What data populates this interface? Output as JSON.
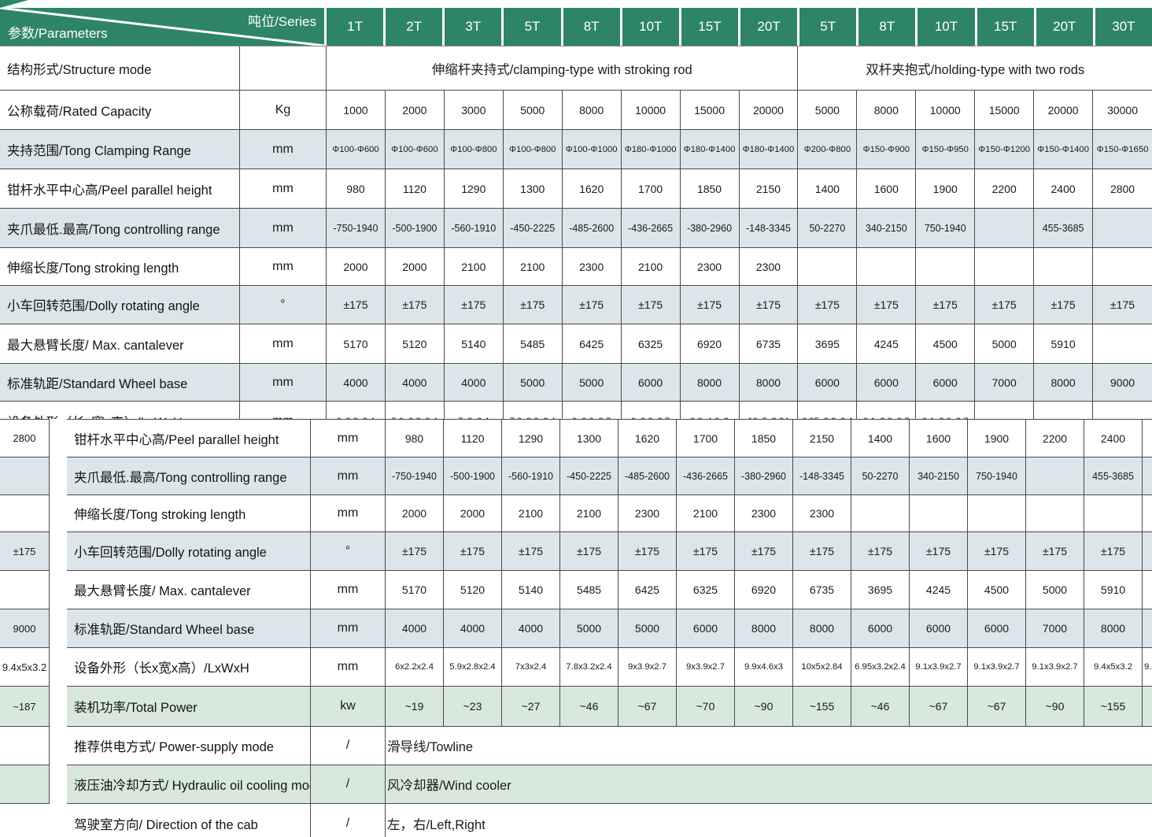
{
  "colors": {
    "header_green": "#2e8468",
    "shade_blue": "#dbe5ea",
    "shade_green": "#d9e8df",
    "border": "#4a4a4a"
  },
  "header": {
    "series_label": "吨位/Series",
    "params_label": "参数/Parameters",
    "columns": [
      "1T",
      "2T",
      "3T",
      "5T",
      "8T",
      "10T",
      "15T",
      "20T",
      "5T",
      "8T",
      "10T",
      "15T",
      "20T",
      "30T"
    ]
  },
  "top_table": {
    "structure": {
      "label": "结构形式/Structure mode",
      "unit": "",
      "groups": [
        {
          "text": "伸缩杆夹持式/clamping-type with stroking rod",
          "span": 8
        },
        {
          "text": "双杆夹抱式/holding-type with two rods",
          "span": 6
        }
      ]
    },
    "rows": [
      {
        "label": "公称载荷/Rated Capacity",
        "unit": "Kg",
        "shade": "none",
        "size": "md",
        "values": [
          "1000",
          "2000",
          "3000",
          "5000",
          "8000",
          "10000",
          "15000",
          "20000",
          "5000",
          "8000",
          "10000",
          "15000",
          "20000",
          "30000"
        ]
      },
      {
        "label": "夹持范围/Tong Clamping Range",
        "unit": "mm",
        "shade": "blue",
        "size": "xs",
        "values": [
          "Φ100-Φ600",
          "Φ100-Φ600",
          "Φ100-Φ800",
          "Φ100-Φ800",
          "Φ100-Φ1000",
          "Φ180-Φ1000",
          "Φ180-Φ1400",
          "Φ180-Φ1400",
          "Φ200-Φ800",
          "Φ150-Φ900",
          "Φ150-Φ950",
          "Φ150-Φ1200",
          "Φ150-Φ1400",
          "Φ150-Φ1650"
        ]
      },
      {
        "label": "钳杆水平中心高/Peel parallel height",
        "unit": "mm",
        "shade": "none",
        "size": "md",
        "values": [
          "980",
          "1120",
          "1290",
          "1300",
          "1620",
          "1700",
          "1850",
          "2150",
          "1400",
          "1600",
          "1900",
          "2200",
          "2400",
          "2800"
        ]
      },
      {
        "label": "夹爪最低.最高/Tong controlling range",
        "unit": "mm",
        "shade": "blue",
        "size": "sm",
        "values": [
          "-750-1940",
          "-500-1900",
          "-560-1910",
          "-450-2225",
          "-485-2600",
          "-436-2665",
          "-380-2960",
          "-148-3345",
          "50-2270",
          "340-2150",
          "750-1940",
          "",
          "455-3685",
          ""
        ]
      },
      {
        "label": "伸缩长度/Tong stroking length",
        "unit": "mm",
        "shade": "none",
        "size": "md",
        "values": [
          "2000",
          "2000",
          "2100",
          "2100",
          "2300",
          "2100",
          "2300",
          "2300",
          "",
          "",
          "",
          "",
          "",
          ""
        ]
      },
      {
        "label": "小车回转范围/Dolly rotating angle",
        "unit": "°",
        "shade": "blue",
        "size": "md",
        "values": [
          "±175",
          "±175",
          "±175",
          "±175",
          "±175",
          "±175",
          "±175",
          "±175",
          "±175",
          "±175",
          "±175",
          "±175",
          "±175",
          "±175"
        ]
      },
      {
        "label": "最大悬臂长度/ Max. cantalever",
        "unit": "mm",
        "shade": "none",
        "size": "md",
        "values": [
          "5170",
          "5120",
          "5140",
          "5485",
          "6425",
          "6325",
          "6920",
          "6735",
          "3695",
          "4245",
          "4500",
          "5000",
          "5910",
          ""
        ]
      },
      {
        "label": "标准轨距/Standard Wheel base",
        "unit": "mm",
        "shade": "blue",
        "size": "md",
        "values": [
          "4000",
          "4000",
          "4000",
          "5000",
          "5000",
          "6000",
          "8000",
          "8000",
          "6000",
          "6000",
          "6000",
          "7000",
          "8000",
          "9000"
        ]
      },
      {
        "label": "设备外形（长x宽x高）/LxWxH",
        "unit": "mm",
        "shade": "none",
        "size": "xs",
        "values": [
          "6x2.2x2.4",
          "5.9x2.8x2.4",
          "7x3x2.4",
          "7.8x3.2x2.4",
          "9x3.9x2.7",
          "9x3.9x2.7",
          "9.9x4.6x3",
          "10x5x2.84",
          "6.95x3.2x2.4",
          "9.1x3.9x2.7",
          "9.1x3.9x2.7",
          "",
          "",
          ""
        ]
      }
    ]
  },
  "overlay_table": {
    "rows": [
      {
        "label": "钳杆水平中心高/Peel parallel height",
        "unit": "mm",
        "shade": "none",
        "size": "md",
        "values": [
          "980",
          "1120",
          "1290",
          "1300",
          "1620",
          "1700",
          "1850",
          "2150",
          "1400",
          "1600",
          "1900",
          "2200",
          "2400",
          ""
        ]
      },
      {
        "label": "夹爪最低.最高/Tong controlling range",
        "unit": "mm",
        "shade": "blue",
        "size": "sm",
        "values": [
          "-750-1940",
          "-500-1900",
          "-560-1910",
          "-450-2225",
          "-485-2600",
          "-436-2665",
          "-380-2960",
          "-148-3345",
          "50-2270",
          "340-2150",
          "750-1940",
          "",
          "455-3685",
          ""
        ]
      },
      {
        "label": "伸缩长度/Tong stroking length",
        "unit": "mm",
        "shade": "none",
        "size": "md",
        "values": [
          "2000",
          "2000",
          "2100",
          "2100",
          "2300",
          "2100",
          "2300",
          "2300",
          "",
          "",
          "",
          "",
          "",
          ""
        ]
      },
      {
        "label": "小车回转范围/Dolly rotating angle",
        "unit": "°",
        "shade": "blue",
        "size": "md",
        "values": [
          "±175",
          "±175",
          "±175",
          "±175",
          "±175",
          "±175",
          "±175",
          "±175",
          "±175",
          "±175",
          "±175",
          "±175",
          "±175",
          ""
        ]
      },
      {
        "label": "最大悬臂长度/ Max. cantalever",
        "unit": "mm",
        "shade": "none",
        "size": "md",
        "values": [
          "5170",
          "5120",
          "5140",
          "5485",
          "6425",
          "6325",
          "6920",
          "6735",
          "3695",
          "4245",
          "4500",
          "5000",
          "5910",
          ""
        ]
      },
      {
        "label": "标准轨距/Standard Wheel base",
        "unit": "mm",
        "shade": "blue",
        "size": "md",
        "values": [
          "4000",
          "4000",
          "4000",
          "5000",
          "5000",
          "6000",
          "8000",
          "8000",
          "6000",
          "6000",
          "6000",
          "7000",
          "8000",
          ""
        ]
      },
      {
        "label": "设备外形（长x宽x高）/LxWxH",
        "unit": "mm",
        "shade": "none",
        "size": "xs",
        "values": [
          "6x2.2x2.4",
          "5.9x2.8x2.4",
          "7x3x2.4",
          "7.8x3.2x2.4",
          "9x3.9x2.7",
          "9x3.9x2.7",
          "9.9x4.6x3",
          "10x5x2.84",
          "6.95x3.2x2.4",
          "9.1x3.9x2.7",
          "9.1x3.9x2.7",
          "9.1x3.9x2.7",
          "9.4x5x3.2",
          "9.4x5x3.2"
        ]
      },
      {
        "label": "装机功率/Total Power",
        "unit": "kw",
        "shade": "green",
        "size": "md",
        "values": [
          "~19",
          "~23",
          "~27",
          "~46",
          "~67",
          "~70",
          "~90",
          "~155",
          "~46",
          "~67",
          "~67",
          "~90",
          "~155",
          ""
        ]
      },
      {
        "label": "推荐供电方式/ Power-supply mode",
        "unit": "/",
        "shade": "none",
        "span": "滑导线/Towline"
      },
      {
        "label": "液压油冷却方式/ Hydraulic oil cooling mode",
        "unit": "/",
        "shade": "green",
        "span": "风冷却器/Wind cooler"
      },
      {
        "label": "驾驶室方向/ Direction of the cab",
        "unit": "/",
        "shade": "none",
        "span": "左，右/Left,Right"
      }
    ]
  },
  "left_strip": {
    "cells": [
      {
        "text": "2800",
        "shade": "none"
      },
      {
        "text": "",
        "shade": "blue"
      },
      {
        "text": "",
        "shade": "none"
      },
      {
        "text": "±175",
        "shade": "blue"
      },
      {
        "text": "",
        "shade": "none"
      },
      {
        "text": "9000",
        "shade": "blue"
      },
      {
        "text": "9.4x5x3.2",
        "shade": "none"
      },
      {
        "text": "~187",
        "shade": "green"
      },
      {
        "text": "",
        "shade": "none"
      },
      {
        "text": "",
        "shade": "green"
      }
    ]
  }
}
